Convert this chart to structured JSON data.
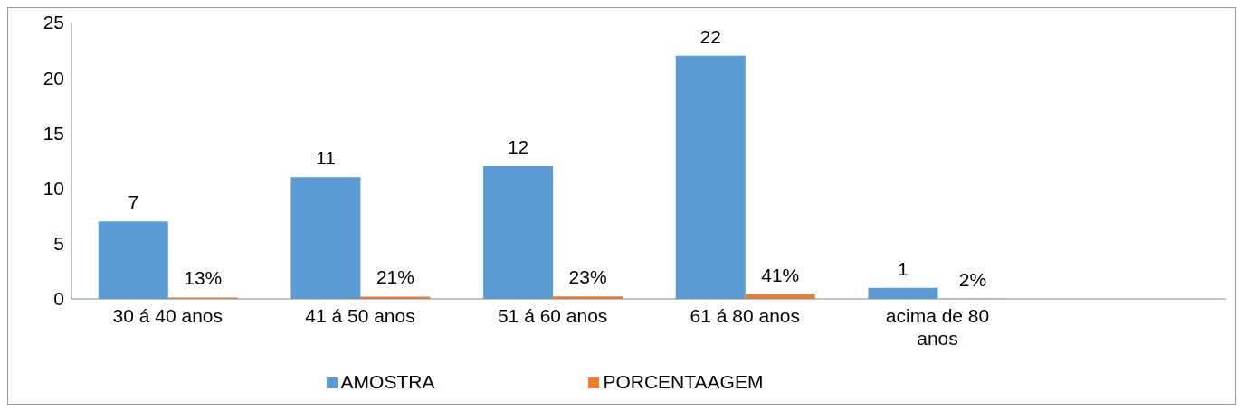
{
  "chart_data": {
    "type": "bar",
    "categories": [
      "30 á 40 anos",
      "41 á 50 anos",
      "51 á 60 anos",
      "61 á 80 anos",
      "acima de 80 anos",
      null
    ],
    "series": [
      {
        "name": "AMOSTRA",
        "color": "#5b9bd5",
        "values": [
          7,
          11,
          12,
          22,
          1,
          null
        ],
        "value_labels": [
          "7",
          "11",
          "12",
          "22",
          "1",
          null
        ]
      },
      {
        "name": "PORCENTAAGEM",
        "color": "#ed7d31",
        "values": [
          0.13,
          0.21,
          0.23,
          0.41,
          0.02,
          null
        ],
        "value_labels": [
          "13%",
          "21%",
          "23%",
          "41%",
          "2%",
          null
        ]
      }
    ],
    "ylim": [
      0,
      25
    ],
    "yticks": [
      0,
      5,
      10,
      15,
      20,
      25
    ],
    "grid": false,
    "legend": "bottom"
  }
}
